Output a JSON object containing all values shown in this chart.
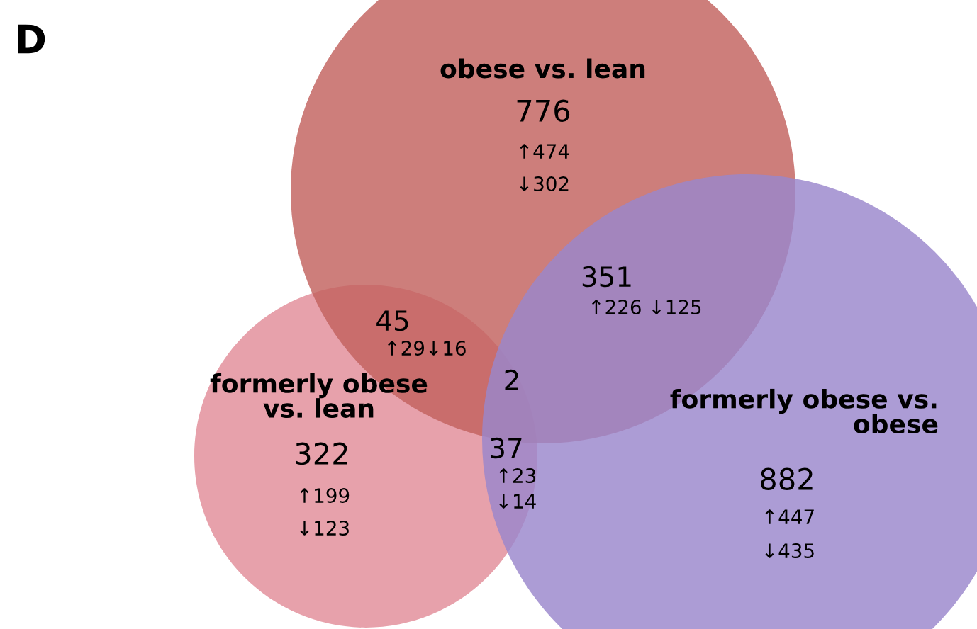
{
  "chart_data": {
    "type": "other",
    "title": "D",
    "categories": [
      "obese vs. lean",
      "formerly obese\nvs. lean",
      "formerly obese vs.\nobese"
    ],
    "colors": [
      "#c2625e",
      "#e28c98",
      "#9a86cc"
    ],
    "values": [
      776,
      322,
      882
    ],
    "data_labels": true,
    "annotations": [
      "↑474",
      "↓302",
      "351",
      "↑226 ↓125",
      "45",
      "↑29↓16",
      "2",
      "↑199",
      "↓123",
      "37",
      "↑23",
      "↓14",
      "↑447",
      "↓435"
    ]
  }
}
